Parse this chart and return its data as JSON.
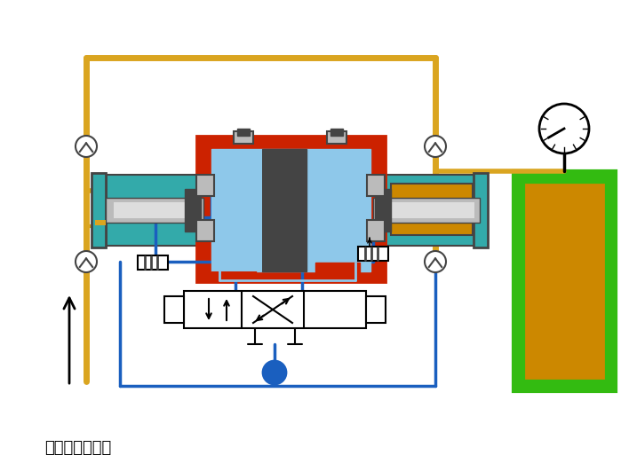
{
  "bg": "#ffffff",
  "label": "需增压气体入口",
  "yellow": "#DAA520",
  "blue": "#1A5FBF",
  "light_blue": "#8EC8EA",
  "red": "#CC2200",
  "green": "#33BB11",
  "teal": "#33AAAA",
  "orange": "#CC8800",
  "silver": "#BBBBBB",
  "silver2": "#DDDDDD",
  "dark": "#444444",
  "gray": "#777777",
  "white": "#FFFFFF",
  "black": "#000000",
  "blue_dark": "#0040A0"
}
